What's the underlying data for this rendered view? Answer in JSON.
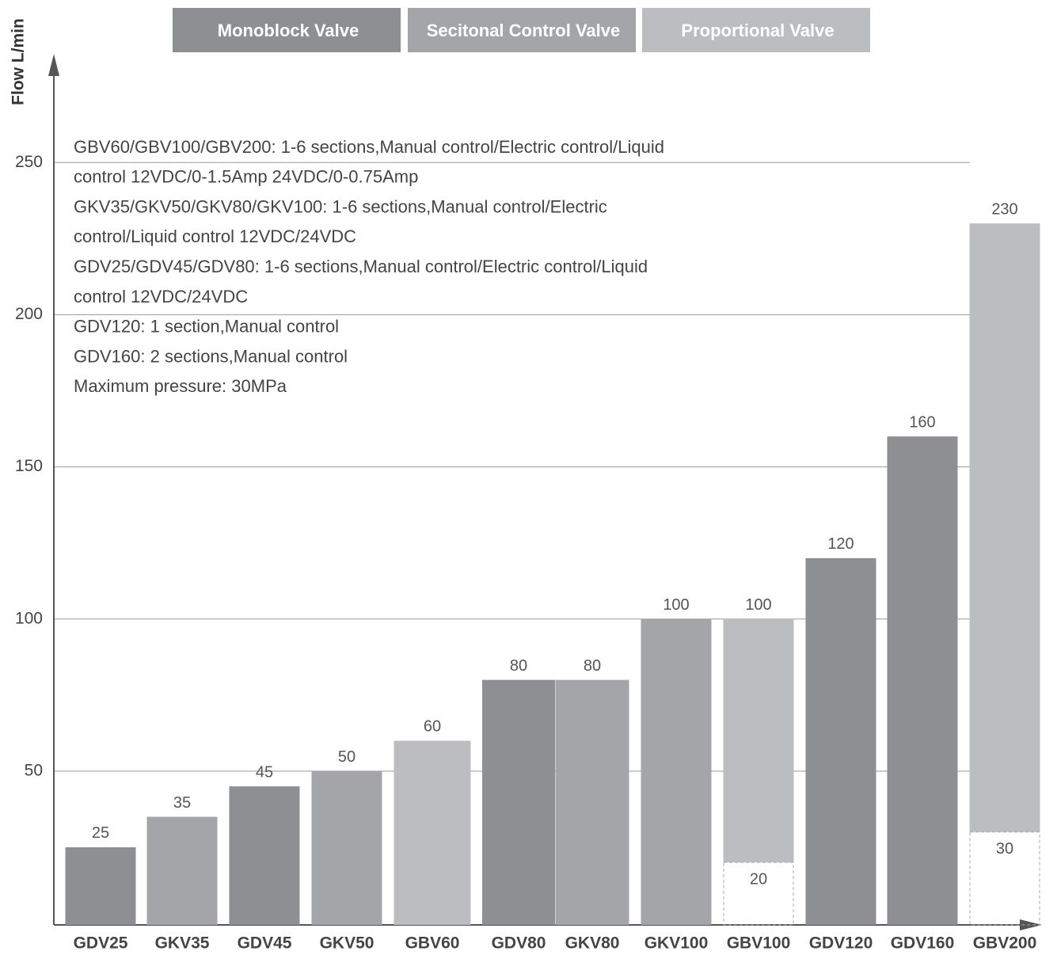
{
  "chart_data": {
    "type": "bar",
    "y_label": "Flow L/min",
    "categories": [
      "GDV25",
      "GKV35",
      "GDV45",
      "GKV50",
      "GBV60",
      "GDV80",
      "GKV80",
      "GKV100",
      "GBV100",
      "GDV120",
      "GDV160",
      "GBV200"
    ],
    "series": [
      {
        "name": "Monoblock Valve",
        "color": "#8e8f93",
        "values": [
          25,
          null,
          45,
          null,
          null,
          80,
          null,
          null,
          null,
          120,
          160,
          null
        ]
      },
      {
        "name": "Secitonal Control Valve",
        "color": "#a4a5a9",
        "values": [
          null,
          35,
          null,
          50,
          null,
          null,
          80,
          100,
          null,
          null,
          null,
          null
        ]
      },
      {
        "name": "Proportional Valve",
        "color": "#bcbdc1",
        "values": [
          null,
          null,
          null,
          null,
          60,
          null,
          null,
          null,
          100,
          null,
          null,
          230
        ],
        "low_values": [
          null,
          null,
          null,
          null,
          null,
          null,
          null,
          null,
          20,
          null,
          null,
          30
        ]
      }
    ],
    "annotations": [
      "GBV60/GBV100/GBV200: 1-6 sections,Manual control/Electric control/Liquid",
      "control 12VDC/0-1.5Amp 24VDC/0-0.75Amp",
      "GKV35/GKV50/GKV80/GKV100: 1-6 sections,Manual control/Electric",
      "control/Liquid control  12VDC/24VDC",
      "GDV25/GDV45/GDV80: 1-6 sections,Manual control/Electric control/Liquid",
      "control  12VDC/24VDC",
      "GDV120: 1 section,Manual control",
      "GDV160: 2 sections,Manual control",
      "Maximum pressure: 30MPa"
    ],
    "ylim": [
      0,
      280
    ],
    "yticks": [
      50,
      100,
      150,
      200,
      250
    ],
    "grid": true
  }
}
